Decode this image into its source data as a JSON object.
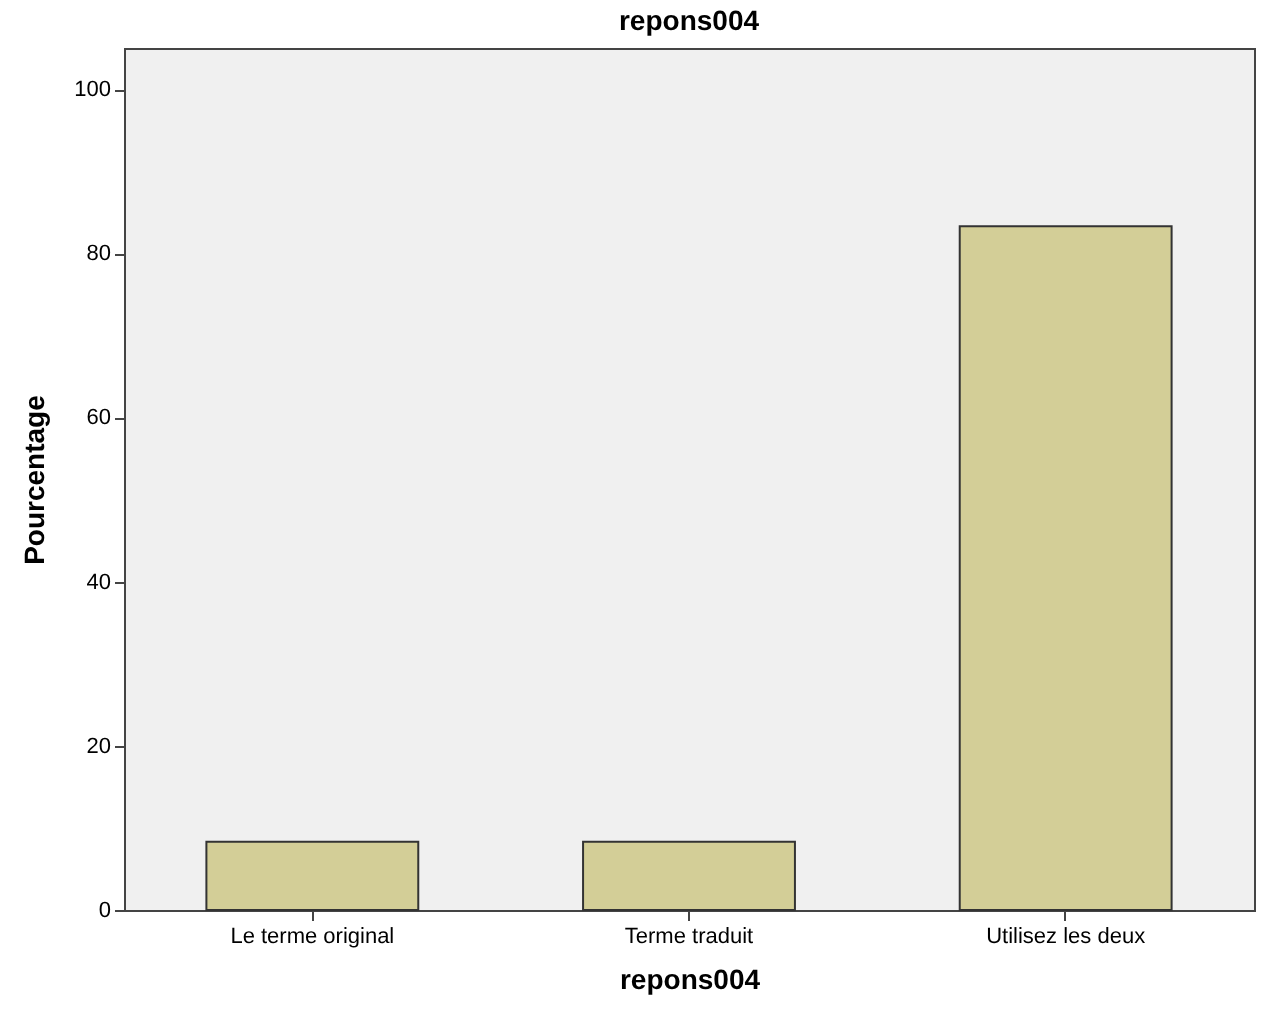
{
  "chart_data": {
    "type": "bar",
    "title": "repons004",
    "xlabel": "repons004",
    "ylabel": "Pourcentage",
    "categories": [
      "Le terme original",
      "Terme traduit",
      "Utilisez les deux"
    ],
    "values": [
      8.3,
      8.3,
      83.3
    ],
    "color": "#d3ce97",
    "ylim": [
      0,
      105
    ],
    "yticks": [
      0,
      20,
      40,
      60,
      80,
      100
    ],
    "grid": false,
    "legend": false
  }
}
